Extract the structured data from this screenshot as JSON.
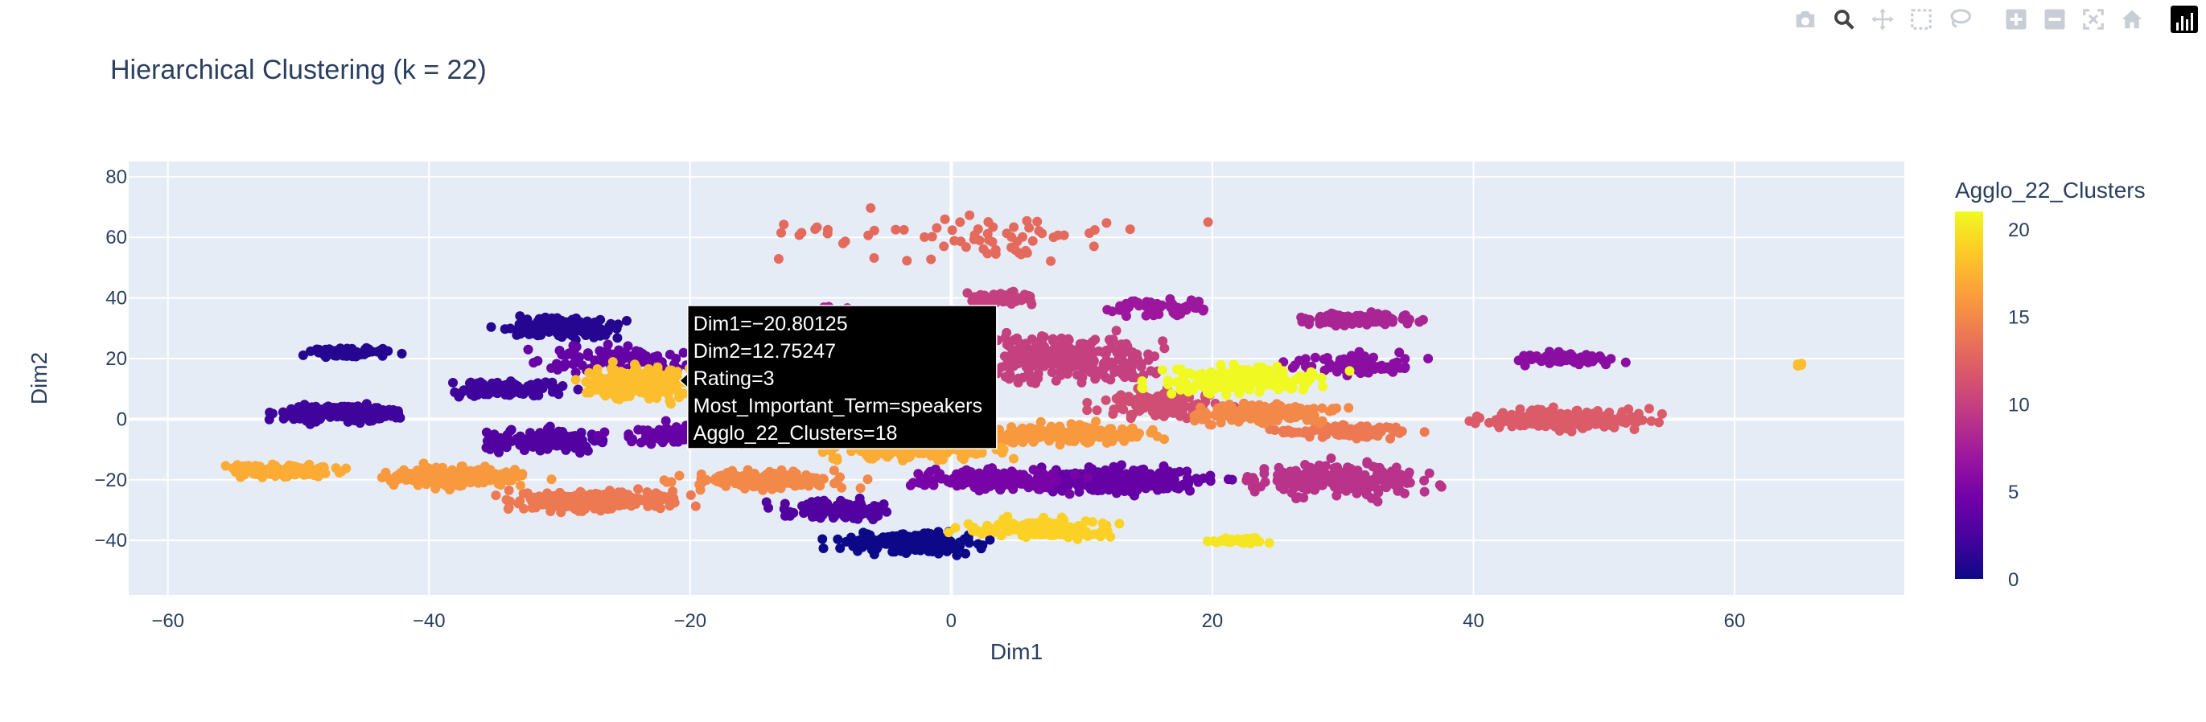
{
  "chart_data": {
    "type": "scatter",
    "title": "Hierarchical Clustering (k = 22)",
    "xlabel": "Dim1",
    "ylabel": "Dim2",
    "xlim": [
      -63,
      73
    ],
    "ylim": [
      -58,
      85
    ],
    "xticks": [
      -60,
      -40,
      -20,
      0,
      20,
      40,
      60
    ],
    "yticks": [
      -40,
      -20,
      0,
      20,
      40,
      60,
      80
    ],
    "xtick_labels": [
      "−60",
      "−40",
      "−20",
      "0",
      "20",
      "40",
      "60"
    ],
    "ytick_labels": [
      "−40",
      "−20",
      "0",
      "20",
      "40",
      "60",
      "80"
    ],
    "grid": true,
    "colorbar": {
      "title": "Agglo_22_Clusters",
      "min": 0,
      "max": 21,
      "ticks": [
        0,
        5,
        10,
        15,
        20
      ],
      "tick_labels": [
        "0",
        "5",
        "10",
        "15",
        "20"
      ],
      "colorscale": "plasma"
    },
    "clusters": [
      {
        "cluster": 0,
        "center": [
          -3,
          -41
        ],
        "spread": [
          5,
          3
        ],
        "count": 180
      },
      {
        "cluster": 1,
        "center": [
          -30,
          30
        ],
        "spread": [
          4,
          3
        ],
        "count": 160
      },
      {
        "cluster": 1,
        "center": [
          -46,
          22
        ],
        "spread": [
          3,
          1.5
        ],
        "count": 80
      },
      {
        "cluster": 2,
        "center": [
          -47,
          2
        ],
        "spread": [
          4,
          3
        ],
        "count": 160
      },
      {
        "cluster": 2,
        "center": [
          -34,
          10
        ],
        "spread": [
          4,
          2.5
        ],
        "count": 120
      },
      {
        "cluster": 3,
        "center": [
          -31,
          -7
        ],
        "spread": [
          4,
          3
        ],
        "count": 150
      },
      {
        "cluster": 3,
        "center": [
          -9,
          -30
        ],
        "spread": [
          4,
          3
        ],
        "count": 110
      },
      {
        "cluster": 4,
        "center": [
          -20,
          -5
        ],
        "spread": [
          5,
          3
        ],
        "count": 150
      },
      {
        "cluster": 4,
        "center": [
          13,
          -20
        ],
        "spread": [
          6,
          4
        ],
        "count": 250
      },
      {
        "cluster": 4,
        "center": [
          -26,
          20
        ],
        "spread": [
          6,
          4
        ],
        "count": 90
      },
      {
        "cluster": 5,
        "center": [
          3,
          -20
        ],
        "spread": [
          5,
          3
        ],
        "count": 180
      },
      {
        "cluster": 6,
        "center": [
          47,
          20
        ],
        "spread": [
          3,
          2
        ],
        "count": 60
      },
      {
        "cluster": 6,
        "center": [
          31,
          18
        ],
        "spread": [
          4,
          3
        ],
        "count": 80
      },
      {
        "cluster": 7,
        "center": [
          16,
          37
        ],
        "spread": [
          4,
          3
        ],
        "count": 60
      },
      {
        "cluster": 8,
        "center": [
          31,
          33
        ],
        "spread": [
          4,
          2
        ],
        "count": 120
      },
      {
        "cluster": 8,
        "center": [
          -5,
          34
        ],
        "spread": [
          5,
          3
        ],
        "count": 80
      },
      {
        "cluster": 9,
        "center": [
          30,
          -20
        ],
        "spread": [
          6,
          5
        ],
        "count": 220
      },
      {
        "cluster": 10,
        "center": [
          9,
          20
        ],
        "spread": [
          6,
          7
        ],
        "count": 260
      },
      {
        "cluster": 10,
        "center": [
          4,
          40
        ],
        "spread": [
          3,
          2
        ],
        "count": 60
      },
      {
        "cluster": 11,
        "center": [
          16,
          5
        ],
        "spread": [
          4,
          4
        ],
        "count": 120
      },
      {
        "cluster": 12,
        "center": [
          47,
          0
        ],
        "spread": [
          6,
          3
        ],
        "count": 200
      },
      {
        "cluster": 13,
        "center": [
          0,
          60
        ],
        "spread": [
          14,
          8
        ],
        "count": 70
      },
      {
        "cluster": 14,
        "center": [
          -27,
          -27
        ],
        "spread": [
          6,
          3
        ],
        "count": 210
      },
      {
        "cluster": 14,
        "center": [
          30,
          -4
        ],
        "spread": [
          5,
          2
        ],
        "count": 90
      },
      {
        "cluster": 15,
        "center": [
          -14,
          -20
        ],
        "spread": [
          6,
          3
        ],
        "count": 160
      },
      {
        "cluster": 15,
        "center": [
          24,
          2
        ],
        "spread": [
          5,
          3
        ],
        "count": 150
      },
      {
        "cluster": 16,
        "center": [
          -38,
          -19
        ],
        "spread": [
          5,
          3
        ],
        "count": 220
      },
      {
        "cluster": 16,
        "center": [
          9,
          -5
        ],
        "spread": [
          6,
          3
        ],
        "count": 200
      },
      {
        "cluster": 17,
        "center": [
          -51,
          -17
        ],
        "spread": [
          4,
          2
        ],
        "count": 130
      },
      {
        "cluster": 17,
        "center": [
          -3,
          -10
        ],
        "spread": [
          6,
          3
        ],
        "count": 180
      },
      {
        "cluster": 18,
        "center": [
          -24,
          12
        ],
        "spread": [
          4,
          5
        ],
        "count": 220
      },
      {
        "cluster": 18,
        "center": [
          65,
          18
        ],
        "spread": [
          0.4,
          0.4
        ],
        "count": 4
      },
      {
        "cluster": 19,
        "center": [
          7,
          -36
        ],
        "spread": [
          5,
          3
        ],
        "count": 150
      },
      {
        "cluster": 20,
        "center": [
          22,
          -40
        ],
        "spread": [
          2,
          1
        ],
        "count": 40
      },
      {
        "cluster": 21,
        "center": [
          22,
          13
        ],
        "spread": [
          6,
          4
        ],
        "count": 180
      }
    ]
  },
  "tooltip": {
    "anchor": [
      -20.80125,
      12.75247
    ],
    "lines": [
      "Dim1=−20.80125",
      "Dim2=12.75247",
      "Rating=3",
      "Most_Important_Term=speakers",
      "Agglo_22_Clusters=18"
    ]
  },
  "modebar": {
    "buttons": [
      {
        "name": "camera-icon",
        "group": 0
      },
      {
        "name": "zoom-icon",
        "group": 0,
        "active": true
      },
      {
        "name": "pan-icon",
        "group": 0
      },
      {
        "name": "box-select-icon",
        "group": 0
      },
      {
        "name": "lasso-icon",
        "group": 0
      },
      {
        "name": "zoom-in-icon",
        "group": 1
      },
      {
        "name": "zoom-out-icon",
        "group": 1
      },
      {
        "name": "autoscale-icon",
        "group": 1
      },
      {
        "name": "reset-axes-icon",
        "group": 1
      }
    ],
    "logo_icon": "plotly-logo-icon"
  }
}
